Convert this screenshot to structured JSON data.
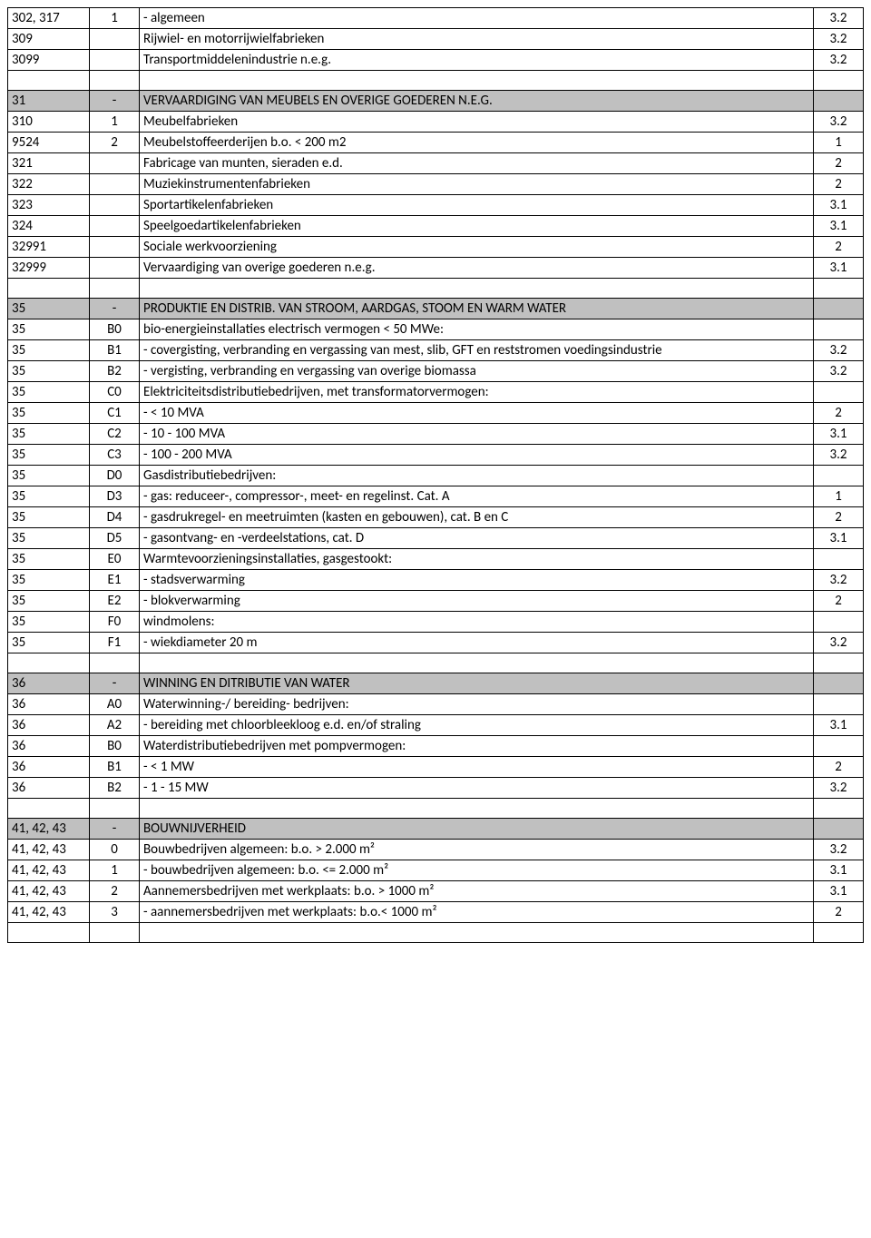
{
  "rows": [
    {
      "type": "data",
      "code": "302, 317",
      "sub": "1",
      "desc": "- algemeen",
      "cat": "3.2"
    },
    {
      "type": "data",
      "code": "309",
      "sub": "",
      "desc": "Rijwiel- en motorrijwielfabrieken",
      "cat": "3.2"
    },
    {
      "type": "data",
      "code": "3099",
      "sub": "",
      "desc": "Transportmiddelenindustrie n.e.g.",
      "cat": "3.2"
    },
    {
      "type": "spacer"
    },
    {
      "type": "header",
      "code": "31",
      "sub": "-",
      "desc": "VERVAARDIGING VAN MEUBELS EN OVERIGE GOEDEREN N.E.G.",
      "cat": ""
    },
    {
      "type": "data",
      "code": "310",
      "sub": "1",
      "desc": "Meubelfabrieken",
      "cat": "3.2"
    },
    {
      "type": "data",
      "code": "9524",
      "sub": "2",
      "desc": "Meubelstoffeerderijen b.o. < 200 m2",
      "cat": "1"
    },
    {
      "type": "data",
      "code": "321",
      "sub": "",
      "desc": "Fabricage van munten, sieraden e.d.",
      "cat": "2"
    },
    {
      "type": "data",
      "code": "322",
      "sub": "",
      "desc": "Muziekinstrumentenfabrieken",
      "cat": "2"
    },
    {
      "type": "data",
      "code": "323",
      "sub": "",
      "desc": "Sportartikelenfabrieken",
      "cat": "3.1"
    },
    {
      "type": "data",
      "code": "324",
      "sub": "",
      "desc": "Speelgoedartikelenfabrieken",
      "cat": "3.1"
    },
    {
      "type": "data",
      "code": "32991",
      "sub": "",
      "desc": "Sociale werkvoorziening",
      "cat": "2"
    },
    {
      "type": "data",
      "code": "32999",
      "sub": "",
      "desc": "Vervaardiging van overige goederen n.e.g.",
      "cat": "3.1"
    },
    {
      "type": "spacer"
    },
    {
      "type": "header",
      "code": "35",
      "sub": "-",
      "desc": "PRODUKTIE EN DISTRIB. VAN STROOM, AARDGAS, STOOM EN WARM WATER",
      "cat": ""
    },
    {
      "type": "data",
      "code": "35",
      "sub": "B0",
      "desc": "bio-energieinstallaties electrisch vermogen < 50 MWe:",
      "cat": ""
    },
    {
      "type": "data",
      "code": "35",
      "sub": "B1",
      "desc": "- covergisting, verbranding en vergassing van mest, slib, GFT en reststromen voedingsindustrie",
      "cat": "3.2"
    },
    {
      "type": "data",
      "code": "35",
      "sub": "B2",
      "desc": "- vergisting, verbranding en vergassing van overige biomassa",
      "cat": "3.2"
    },
    {
      "type": "data",
      "code": "35",
      "sub": "C0",
      "desc": "Elektriciteitsdistributiebedrijven, met transformatorvermogen:",
      "cat": ""
    },
    {
      "type": "data",
      "code": "35",
      "sub": "C1",
      "desc": "- < 10 MVA",
      "cat": "2"
    },
    {
      "type": "data",
      "code": "35",
      "sub": "C2",
      "desc": "- 10 - 100 MVA",
      "cat": "3.1"
    },
    {
      "type": "data",
      "code": "35",
      "sub": "C3",
      "desc": "- 100 - 200 MVA",
      "cat": "3.2"
    },
    {
      "type": "data",
      "code": "35",
      "sub": "D0",
      "desc": "Gasdistributiebedrijven:",
      "cat": ""
    },
    {
      "type": "data",
      "code": "35",
      "sub": "D3",
      "desc": "- gas: reduceer-, compressor-, meet- en regelinst. Cat. A",
      "cat": "1"
    },
    {
      "type": "data",
      "code": "35",
      "sub": "D4",
      "desc": "- gasdrukregel- en meetruimten (kasten en gebouwen), cat. B en C",
      "cat": "2"
    },
    {
      "type": "data",
      "code": "35",
      "sub": "D5",
      "desc": "- gasontvang- en -verdeelstations, cat. D",
      "cat": "3.1"
    },
    {
      "type": "data",
      "code": "35",
      "sub": "E0",
      "desc": "Warmtevoorzieningsinstallaties, gasgestookt:",
      "cat": ""
    },
    {
      "type": "data",
      "code": "35",
      "sub": "E1",
      "desc": "- stadsverwarming",
      "cat": "3.2"
    },
    {
      "type": "data",
      "code": "35",
      "sub": "E2",
      "desc": "- blokverwarming",
      "cat": "2"
    },
    {
      "type": "data",
      "code": "35",
      "sub": "F0",
      "desc": "windmolens:",
      "cat": ""
    },
    {
      "type": "data",
      "code": "35",
      "sub": "F1",
      "desc": "- wiekdiameter 20 m",
      "cat": "3.2"
    },
    {
      "type": "spacer"
    },
    {
      "type": "header",
      "code": "36",
      "sub": "-",
      "desc": "WINNING EN DITRIBUTIE VAN WATER",
      "cat": ""
    },
    {
      "type": "data",
      "code": "36",
      "sub": "A0",
      "desc": "Waterwinning-/ bereiding- bedrijven:",
      "cat": ""
    },
    {
      "type": "data",
      "code": "36",
      "sub": "A2",
      "desc": "- bereiding met chloorbleekloog e.d. en/of straling",
      "cat": "3.1"
    },
    {
      "type": "data",
      "code": "36",
      "sub": "B0",
      "desc": "Waterdistributiebedrijven met pompvermogen:",
      "cat": ""
    },
    {
      "type": "data",
      "code": "36",
      "sub": "B1",
      "desc": "- < 1 MW",
      "cat": "2"
    },
    {
      "type": "data",
      "code": "36",
      "sub": "B2",
      "desc": "- 1 - 15 MW",
      "cat": "3.2"
    },
    {
      "type": "spacer"
    },
    {
      "type": "header",
      "code": "41, 42, 43",
      "sub": "-",
      "desc": "BOUWNIJVERHEID",
      "cat": ""
    },
    {
      "type": "data",
      "code": "41, 42, 43",
      "sub": "0",
      "desc": "Bouwbedrijven algemeen: b.o. > 2.000 m²",
      "cat": "3.2"
    },
    {
      "type": "data",
      "code": "41, 42, 43",
      "sub": "1",
      "desc": "- bouwbedrijven algemeen: b.o. <= 2.000 m²",
      "cat": "3.1"
    },
    {
      "type": "data",
      "code": "41, 42, 43",
      "sub": "2",
      "desc": "Aannemersbedrijven met werkplaats: b.o. > 1000 m²",
      "cat": "3.1"
    },
    {
      "type": "data",
      "code": "41, 42, 43",
      "sub": "3",
      "desc": "- aannemersbedrijven met werkplaats: b.o.< 1000 m²",
      "cat": "2"
    },
    {
      "type": "spacer"
    }
  ]
}
